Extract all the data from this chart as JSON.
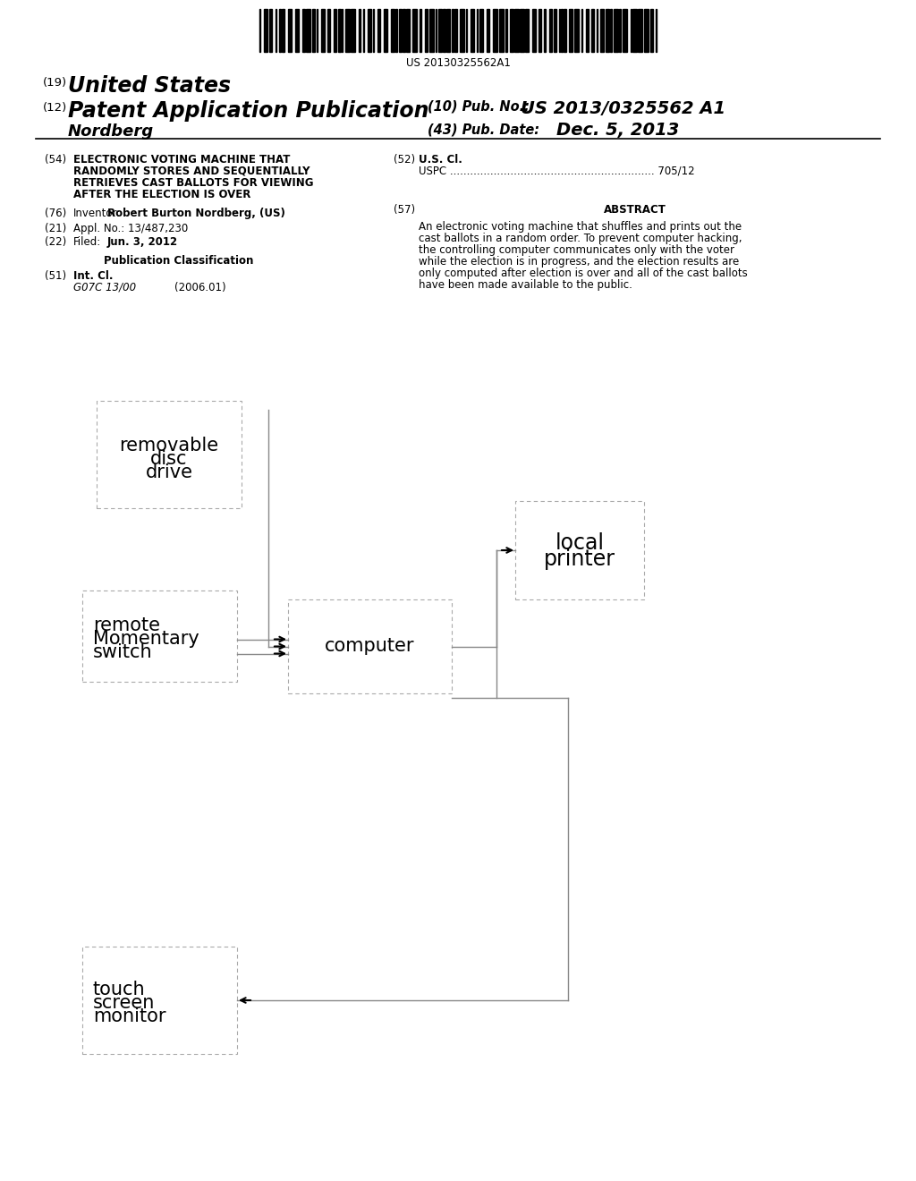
{
  "bg_color": "#ffffff",
  "barcode_text": "US 20130325562A1",
  "title_19": "(19)",
  "title_us": "United States",
  "title_12": "(12)",
  "title_patent": "Patent Application Publication",
  "title_10": "(10) Pub. No.:",
  "pub_no": "US 2013/0325562 A1",
  "inventor_label": "Nordberg",
  "title_43": "(43) Pub. Date:",
  "pub_date": "Dec. 5, 2013",
  "field_54_label": "(54)",
  "field_54_line1": "ELECTRONIC VOTING MACHINE THAT",
  "field_54_line2": "RANDOMLY STORES AND SEQUENTIALLY",
  "field_54_line3": "RETRIEVES CAST BALLOTS FOR VIEWING",
  "field_54_line4": "AFTER THE ELECTION IS OVER",
  "field_52_label": "(52)",
  "field_52_title": "U.S. Cl.",
  "field_52_uspc": "USPC ............................................................. 705/12",
  "field_76_label": "(76)",
  "field_76_inventor": "Inventor:",
  "field_76_name": "Robert Burton Nordberg, (US)",
  "field_57_label": "(57)",
  "field_57_title": "ABSTRACT",
  "abstract_line1": "An electronic voting machine that shuffles and prints out the",
  "abstract_line2": "cast ballots in a random order. To prevent computer hacking,",
  "abstract_line3": "the controlling computer communicates only with the voter",
  "abstract_line4": "while the election is in progress, and the election results are",
  "abstract_line5": "only computed after election is over and all of the cast ballots",
  "abstract_line6": "have been made available to the public.",
  "field_21_label": "(21)",
  "field_21_text": "Appl. No.: 13/487,230",
  "field_22_label": "(22)",
  "field_22_filed": "Filed:",
  "field_22_date": "Jun. 3, 2012",
  "pub_class_title": "Publication Classification",
  "field_51_label": "(51)",
  "field_51_title": "Int. Cl.",
  "field_51_code": "G07C 13/00",
  "field_51_year": "(2006.01)",
  "box_removable_line1": "removable",
  "box_removable_line2": "disc",
  "box_removable_line3": "drive",
  "box_computer": "computer",
  "box_printer_line1": "local",
  "box_printer_line2": "printer",
  "box_touch_line1": "touch",
  "box_touch_line2": "screen",
  "box_touch_line3": "monitor",
  "box_remote_line1": "remote",
  "box_remote_line2": "Momentary",
  "box_remote_line3": "switch",
  "lc": "#888888",
  "box_lc": "#aaaaaa"
}
